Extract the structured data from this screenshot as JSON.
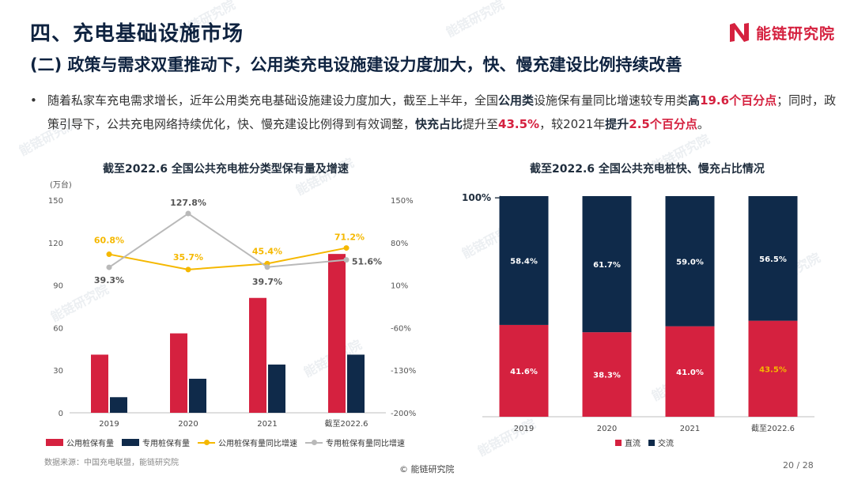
{
  "header": {
    "title": "四、充电基础设施市场",
    "subtitle": "(二) 政策与需求双重推动下，公用类充电设施建设力度加大，快、慢充建设比例持续改善",
    "logo_text": "能链研究院"
  },
  "bullet": {
    "dot": "•",
    "p1": "随着私家车充电需求增长，近年公用类充电基础设施建设力度加大，截至上半年，全国",
    "b1": "公用类",
    "p2": "设施保有量同比增速较专用类",
    "b2": "高",
    "r1": "19.6个百分点",
    "p3": "；同时，政策引导下，公共充电网络持续优化，快、慢充建设比例得到有效调整，",
    "b3": "快充占比",
    "p4": "提升至",
    "r2": "43.5%",
    "p5": "，较2021年",
    "b4": "提升",
    "r3": "2.5个百分点",
    "p6": "。"
  },
  "chart_data": [
    {
      "type": "bar",
      "title": "截至2022.6 全国公共充电桩分类型保有量及增速",
      "ylabel": "(万台)",
      "categories": [
        "2019",
        "2020",
        "2021",
        "截至2022.6"
      ],
      "ylim": [
        0,
        150
      ],
      "yticks": [
        "0",
        "30",
        "60",
        "90",
        "120",
        "150"
      ],
      "y2lim": [
        -200,
        150
      ],
      "y2ticks": [
        "-200%",
        "-130%",
        "-60%",
        "10%",
        "80%",
        "150%"
      ],
      "series": [
        {
          "name": "公用桩保有量",
          "kind": "bar",
          "color": "#d5213f",
          "values": [
            41,
            56,
            81,
            112
          ]
        },
        {
          "name": "专用桩保有量",
          "kind": "bar",
          "color": "#0f2a4a",
          "values": [
            11,
            24,
            34,
            41
          ]
        },
        {
          "name": "公用桩保有量同比增速",
          "kind": "line",
          "axis": "right",
          "color": "#f5b800",
          "values": [
            60.8,
            35.7,
            45.4,
            71.2
          ],
          "labels": [
            "60.8%",
            "35.7%",
            "45.4%",
            "71.2%"
          ]
        },
        {
          "name": "专用桩保有量同比增速",
          "kind": "line",
          "axis": "right",
          "color": "#b9b9b9",
          "values": [
            39.3,
            127.8,
            39.7,
            51.6
          ],
          "labels": [
            "39.3%",
            "127.8%",
            "39.7%",
            "51.6%"
          ]
        }
      ],
      "legend_position": "bottom"
    },
    {
      "type": "bar",
      "stacked": true,
      "title": "截至2022.6 全国公共充电桩快、慢充占比情况",
      "categories": [
        "2019",
        "2020",
        "2021",
        "截至2022.6"
      ],
      "ylim": [
        0,
        100
      ],
      "top_label": "100% →",
      "series": [
        {
          "name": "直流",
          "color": "#d5213f",
          "values": [
            41.6,
            38.3,
            41.0,
            43.5
          ],
          "labels": [
            "41.6%",
            "38.3%",
            "41.0%",
            "43.5%"
          ],
          "label_colors": [
            "#ffffff",
            "#ffffff",
            "#ffffff",
            "#f5b800"
          ]
        },
        {
          "name": "交流",
          "color": "#0f2a4a",
          "values": [
            58.4,
            61.7,
            59.0,
            56.5
          ],
          "labels": [
            "58.4%",
            "61.7%",
            "59.0%",
            "56.5%"
          ]
        }
      ],
      "legend_position": "bottom"
    }
  ],
  "footer": {
    "source": "数据来源：中国充电联盟，能链研究院",
    "copyright": "© 能链研究院",
    "page": "20 / 28"
  },
  "colors": {
    "red": "#d5213f",
    "navy": "#0f2a4a",
    "gold": "#f5b800",
    "gray": "#b9b9b9"
  }
}
